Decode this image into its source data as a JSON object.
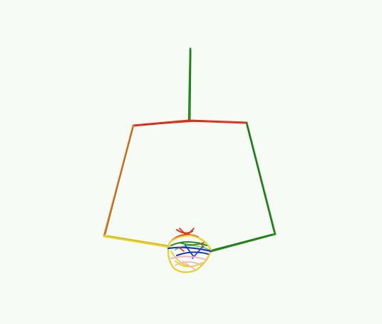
{
  "canvas": {
    "background": "#f7fbf6"
  },
  "figure": {
    "description_visible_text": "",
    "colors": {
      "red": "#e2321d",
      "orange": "#d97a1c",
      "yellow": "#e8cf22",
      "green": "#268a1c",
      "blue": "#1c34c8",
      "pink": "#f0b4c4",
      "light_green": "#6ccf66"
    }
  }
}
